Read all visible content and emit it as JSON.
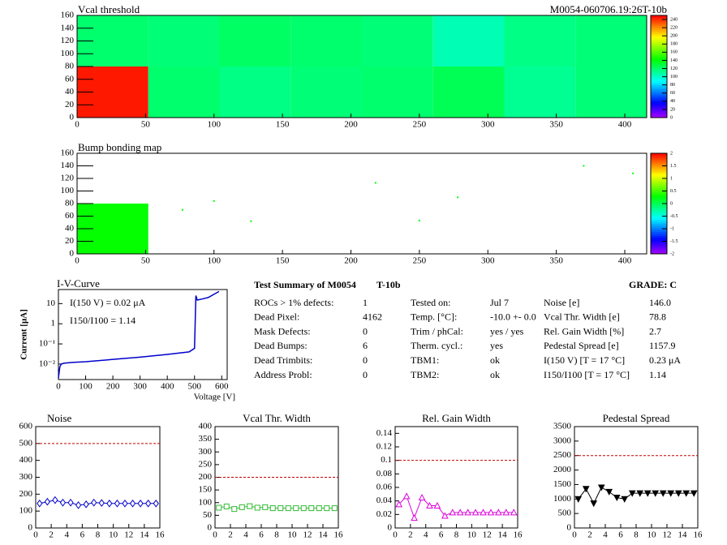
{
  "chart_data": [
    {
      "type": "heatmap",
      "title": "Vcal threshold",
      "label": "M0054-060706.19:26T-10b",
      "xlim": [
        0,
        416
      ],
      "ylim": [
        0,
        160
      ],
      "xticks": [
        0,
        50,
        100,
        150,
        200,
        250,
        300,
        350,
        400
      ],
      "yticks": [
        0,
        20,
        40,
        60,
        80,
        100,
        120,
        140,
        160
      ],
      "values": [
        [
          245,
          120,
          115,
          118,
          120,
          125,
          112,
          118
        ],
        [
          120,
          118,
          122,
          120,
          118,
          105,
          115,
          118
        ]
      ],
      "zlim": [
        0,
        250
      ],
      "zticks": [
        0,
        20,
        40,
        60,
        80,
        100,
        120,
        140,
        160,
        180,
        200,
        220,
        240
      ]
    },
    {
      "type": "heatmap",
      "title": "Bump bonding map",
      "xlim": [
        0,
        416
      ],
      "ylim": [
        0,
        160
      ],
      "xticks": [
        0,
        50,
        100,
        150,
        200,
        250,
        300,
        350,
        400
      ],
      "yticks": [
        0,
        20,
        40,
        60,
        80,
        100,
        120,
        140,
        160
      ],
      "values": [
        [
          0.3,
          null,
          null,
          null,
          null,
          null,
          null,
          null
        ],
        [
          null,
          null,
          null,
          null,
          null,
          null,
          null,
          null
        ]
      ],
      "dots": {
        "x": [
          77,
          100,
          127,
          218,
          250,
          278,
          370,
          406
        ],
        "y": [
          70,
          84,
          52,
          113,
          53,
          90,
          140,
          128
        ]
      },
      "zlim": [
        -2,
        2
      ],
      "zticks": [
        -2,
        -1.5,
        -1,
        -0.5,
        0,
        0.5,
        1,
        1.5,
        2
      ]
    },
    {
      "type": "line",
      "title": "I-V-Curve",
      "xlabel": "Voltage [V]",
      "ylabel": "Current [μA]",
      "ylog": true,
      "color": "#0000cc",
      "marker": "none",
      "xlim": [
        0,
        620
      ],
      "ylim": [
        0.0017,
        50
      ],
      "xticks": [
        0,
        100,
        200,
        300,
        400,
        500,
        600
      ],
      "yticks": [
        {
          "value": 0.01,
          "label": "10⁻²"
        },
        {
          "value": 0.1,
          "label": "10⁻¹"
        },
        1,
        10
      ],
      "annotations": [
        "I(150 V) = 0.02 μA",
        "I150/I100 =  1.14"
      ],
      "x": [
        0,
        5,
        10,
        20,
        50,
        100,
        200,
        300,
        400,
        480,
        500,
        505,
        510,
        520,
        550,
        590
      ],
      "values": [
        0.002,
        0.007,
        0.01,
        0.011,
        0.012,
        0.013,
        0.017,
        0.022,
        0.03,
        0.04,
        0.06,
        25,
        15,
        16,
        20,
        40
      ]
    },
    {
      "type": "line",
      "title": "Noise",
      "color": "#0000cc",
      "marker": "diamond",
      "reference": 500,
      "xlim": [
        0,
        16
      ],
      "ylim": [
        0,
        600
      ],
      "xticks": [
        0,
        2,
        4,
        6,
        8,
        10,
        12,
        14,
        16
      ],
      "yticks": [
        0,
        100,
        200,
        300,
        400,
        500,
        600
      ],
      "x": [
        0.5,
        1.5,
        2.5,
        3.5,
        4.5,
        5.5,
        6.5,
        7.5,
        8.5,
        9.5,
        10.5,
        11.5,
        12.5,
        13.5,
        14.5,
        15.5
      ],
      "values": [
        145,
        155,
        165,
        150,
        150,
        135,
        140,
        150,
        148,
        145,
        145,
        145,
        145,
        145,
        145,
        145
      ]
    },
    {
      "type": "line",
      "title": "Vcal Thr. Width",
      "color": "#33bb33",
      "marker": "square",
      "reference": 200,
      "xlim": [
        0,
        16
      ],
      "ylim": [
        0,
        400
      ],
      "xticks": [
        0,
        2,
        4,
        6,
        8,
        10,
        12,
        14,
        16
      ],
      "yticks": [
        0,
        50,
        100,
        150,
        200,
        250,
        300,
        350,
        400
      ],
      "x": [
        0.5,
        1.5,
        2.5,
        3.5,
        4.5,
        5.5,
        6.5,
        7.5,
        8.5,
        9.5,
        10.5,
        11.5,
        12.5,
        13.5,
        14.5,
        15.5
      ],
      "values": [
        80,
        85,
        75,
        82,
        86,
        80,
        82,
        78,
        78,
        78,
        78,
        78,
        78,
        78,
        78,
        78
      ]
    },
    {
      "type": "line",
      "title": "Rel. Gain Width",
      "color": "#dd00dd",
      "marker": "triangle",
      "reference": 0.1,
      "xlim": [
        0,
        16
      ],
      "ylim": [
        0,
        0.15
      ],
      "xticks": [
        0,
        2,
        4,
        6,
        8,
        10,
        12,
        14,
        16
      ],
      "yticks": [
        0,
        0.02,
        0.04,
        0.06,
        0.08,
        0.1,
        0.12,
        0.14
      ],
      "x": [
        0.5,
        1.5,
        2.5,
        3.5,
        4.5,
        5.5,
        6.5,
        7.5,
        8.5,
        9.5,
        10.5,
        11.5,
        12.5,
        13.5,
        14.5,
        15.5
      ],
      "values": [
        0.035,
        0.047,
        0.015,
        0.045,
        0.033,
        0.033,
        0.018,
        0.023,
        0.023,
        0.023,
        0.023,
        0.023,
        0.023,
        0.023,
        0.023,
        0.023
      ]
    },
    {
      "type": "line",
      "title": "Pedestal Spread",
      "color": "#000000",
      "marker": "triangle-down",
      "reference": 2500,
      "xlim": [
        0,
        16
      ],
      "ylim": [
        0,
        3500
      ],
      "xticks": [
        0,
        2,
        4,
        6,
        8,
        10,
        12,
        14,
        16
      ],
      "yticks": [
        0,
        500,
        1000,
        1500,
        2000,
        2500,
        3000,
        3500
      ],
      "x": [
        0.5,
        1.5,
        2.5,
        3.5,
        4.5,
        5.5,
        6.5,
        7.5,
        8.5,
        9.5,
        10.5,
        11.5,
        12.5,
        13.5,
        14.5,
        15.5
      ],
      "values": [
        1000,
        1350,
        850,
        1400,
        1250,
        1050,
        1000,
        1200,
        1200,
        1200,
        1200,
        1200,
        1200,
        1200,
        1200,
        1200
      ]
    }
  ],
  "summary": {
    "title": "Test Summary of M0054",
    "tag": "T-10b",
    "grade": "GRADE:  C",
    "columns": [
      [
        [
          "ROCs > 1% defects:",
          "1"
        ],
        [
          "Dead Pixel:",
          "4162"
        ],
        [
          "Mask Defects:",
          "0"
        ],
        [
          "Dead Bumps:",
          "6"
        ],
        [
          "Dead Trimbits:",
          "0"
        ],
        [
          "Address Probl:",
          "0"
        ]
      ],
      [
        [
          "Tested on:",
          "Jul 7"
        ],
        [
          "Temp. [°C]:",
          "-10.0 +- 0.0"
        ],
        [
          "Trim / phCal:",
          "yes / yes"
        ],
        [
          "Therm. cycl.:",
          "yes"
        ],
        [
          "TBM1:",
          "ok"
        ],
        [
          "TBM2:",
          "ok"
        ]
      ],
      [
        [
          "Noise [e]",
          "146.0"
        ],
        [
          "Vcal Thr. Width [e]",
          "78.8"
        ],
        [
          "Rel. Gain Width [%]",
          "2.7"
        ],
        [
          "Pedestal Spread [e]",
          "1157.9"
        ],
        [
          "I(150 V) [T = 17 °C]",
          "0.23 μA"
        ],
        [
          "I150/I100  [T = 17 °C]",
          "1.14"
        ]
      ]
    ]
  }
}
